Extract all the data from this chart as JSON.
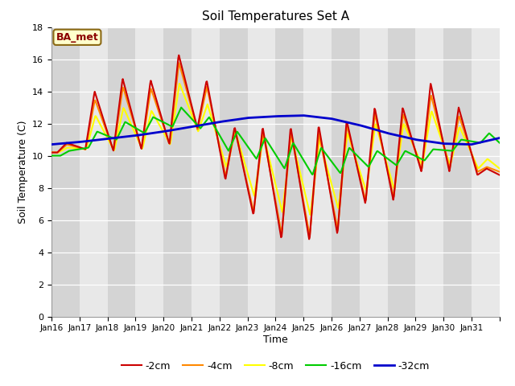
{
  "title": "Soil Temperatures Set A",
  "xlabel": "Time",
  "ylabel": "Soil Temperature (C)",
  "ylim": [
    0,
    18
  ],
  "yticks": [
    0,
    2,
    4,
    6,
    8,
    10,
    12,
    14,
    16,
    18
  ],
  "annotation_text": "BA_met",
  "legend_labels": [
    "-2cm",
    "-4cm",
    "-8cm",
    "-16cm",
    "-32cm"
  ],
  "line_colors": [
    "#cc0000",
    "#ff8800",
    "#ffff00",
    "#00cc00",
    "#0000cc"
  ],
  "line_widths": [
    1.5,
    1.5,
    1.5,
    1.5,
    2.0
  ],
  "days": [
    "Jan 16",
    "Jan 17",
    "Jan 18",
    "Jan 19",
    "Jan 20",
    "Jan 21",
    "Jan 22",
    "Jan 23",
    "Jan 24",
    "Jan 25",
    "Jan 26",
    "Jan 27",
    "Jan 28",
    "Jan 29",
    "Jan 30",
    "Jan 31"
  ],
  "background_color": "#ffffff",
  "band_colors": [
    "#d4d4d4",
    "#e8e8e8"
  ]
}
